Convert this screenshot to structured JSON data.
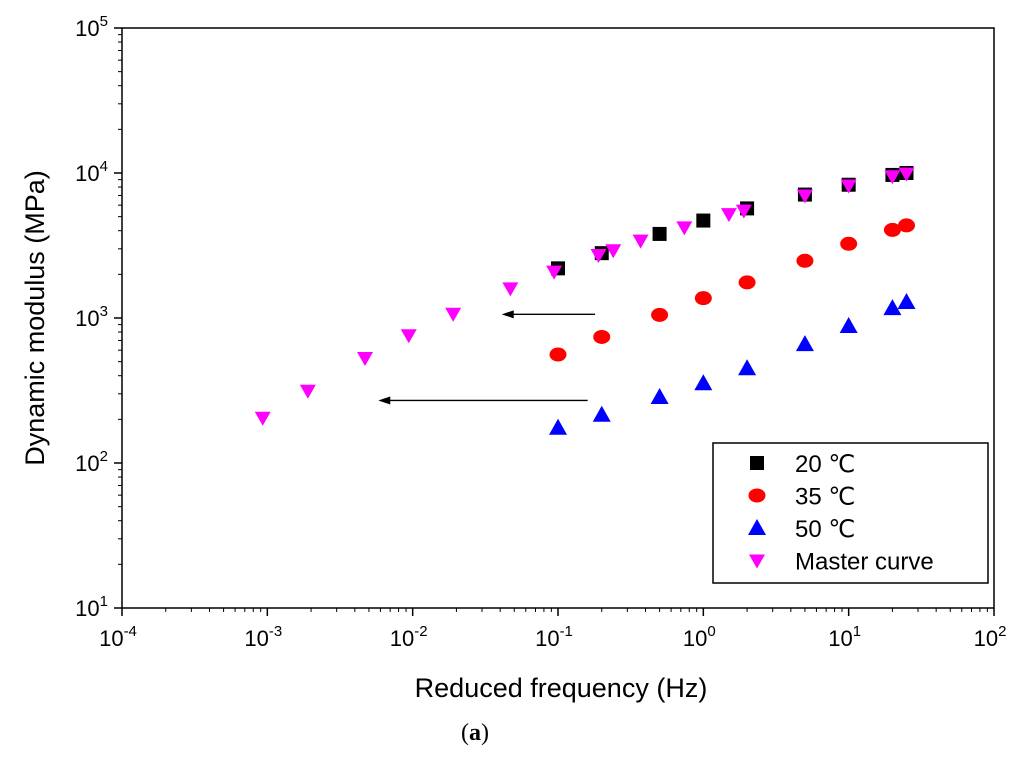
{
  "chart_data": {
    "type": "scatter",
    "title": "",
    "xlabel": "Reduced frequency (Hz)",
    "ylabel": "Dynamic modulus (MPa)",
    "xscale": "log",
    "yscale": "log",
    "xlim": [
      0.0001,
      100
    ],
    "ylim": [
      10,
      100000
    ],
    "x_tick_labels": [
      {
        "base": "10",
        "exp": "-4",
        "value": 0.0001
      },
      {
        "base": "10",
        "exp": "-3",
        "value": 0.001
      },
      {
        "base": "10",
        "exp": "-2",
        "value": 0.01
      },
      {
        "base": "10",
        "exp": "-1",
        "value": 0.1
      },
      {
        "base": "10",
        "exp": "0",
        "value": 1
      },
      {
        "base": "10",
        "exp": "1",
        "value": 10
      },
      {
        "base": "10",
        "exp": "2",
        "value": 100
      }
    ],
    "y_tick_labels": [
      {
        "base": "10",
        "exp": "1",
        "value": 10
      },
      {
        "base": "10",
        "exp": "2",
        "value": 100
      },
      {
        "base": "10",
        "exp": "3",
        "value": 1000
      },
      {
        "base": "10",
        "exp": "4",
        "value": 10000
      },
      {
        "base": "10",
        "exp": "5",
        "value": 100000
      }
    ],
    "legend_position": "bottom-right",
    "series": [
      {
        "name": "20 ℃",
        "marker": "square",
        "color": "#000000",
        "x": [
          0.1,
          0.2,
          0.5,
          1,
          2,
          5,
          10,
          20,
          25
        ],
        "y": [
          2200,
          2800,
          3800,
          4700,
          5700,
          7100,
          8300,
          9700,
          10000
        ]
      },
      {
        "name": "35 ℃",
        "marker": "circle",
        "color": "#ff0000",
        "x": [
          0.1,
          0.2,
          0.5,
          1,
          2,
          5,
          10,
          20,
          25
        ],
        "y": [
          560,
          740,
          1050,
          1370,
          1760,
          2480,
          3250,
          4050,
          4350
        ]
      },
      {
        "name": "50 ℃",
        "marker": "triangle-up",
        "color": "#0000ff",
        "x": [
          0.1,
          0.2,
          0.5,
          1,
          2,
          5,
          10,
          20,
          25
        ],
        "y": [
          175,
          215,
          285,
          355,
          450,
          660,
          880,
          1170,
          1290
        ]
      },
      {
        "name": "Master curve",
        "marker": "triangle-down",
        "color": "#ff00ff",
        "x": [
          0.00093,
          0.0019,
          0.0047,
          0.0094,
          0.019,
          0.047,
          0.094,
          0.19,
          0.24,
          0.37,
          0.74,
          1.5,
          1.9,
          5,
          10,
          20,
          25
        ],
        "y": [
          205,
          315,
          530,
          760,
          1070,
          1600,
          2090,
          2720,
          2930,
          3420,
          4220,
          5200,
          5500,
          7000,
          8200,
          9500,
          9900
        ]
      }
    ],
    "annotations": [
      {
        "type": "arrow",
        "color": "#000000",
        "y": 1060,
        "x_from": 0.18,
        "x_to": 0.041
      },
      {
        "type": "arrow",
        "color": "#000000",
        "y": 270,
        "x_from": 0.16,
        "x_to": 0.0058
      }
    ]
  },
  "caption": {
    "open": "(",
    "letter": "a",
    "close": ")"
  }
}
